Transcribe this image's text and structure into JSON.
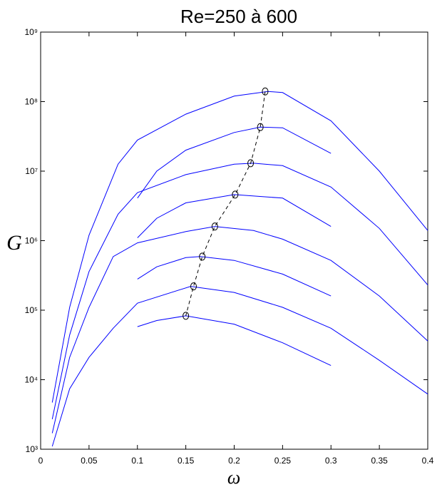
{
  "chart_data": {
    "type": "line",
    "title": "Re=250 à 600",
    "x_label": "ω",
    "y_label": "G",
    "log_y": true,
    "xlim": [
      0,
      0.4
    ],
    "ylim": [
      1000,
      1000000000
    ],
    "xticks": [
      0,
      0.05,
      0.1,
      0.15,
      0.2,
      0.25,
      0.3,
      0.35,
      0.4
    ],
    "yticks": [
      {
        "value": 1000,
        "label": "10³"
      },
      {
        "value": 10000,
        "label": "10⁴"
      },
      {
        "value": 100000,
        "label": "10⁵"
      },
      {
        "value": 1000000,
        "label": "10⁶"
      },
      {
        "value": 10000000,
        "label": "10⁷"
      },
      {
        "value": 100000000,
        "label": "10⁸"
      },
      {
        "value": 1000000000,
        "label": "10⁹"
      }
    ],
    "series": [
      {
        "color": "#0000ff",
        "x": [
          0.012,
          0.03,
          0.05,
          0.08,
          0.1,
          0.15,
          0.2,
          0.235,
          0.25,
          0.3,
          0.35,
          0.4
        ],
        "values": [
          4700,
          110000,
          1200000,
          12600000,
          28000000,
          66000000,
          120000000,
          140000000,
          135000000,
          53000000,
          10000000,
          1400000
        ]
      },
      {
        "color": "#0000ff",
        "x": [
          0.012,
          0.03,
          0.05,
          0.08,
          0.1,
          0.15,
          0.2,
          0.22,
          0.25,
          0.3,
          0.35,
          0.4
        ],
        "values": [
          2700,
          44000,
          360000,
          2400000,
          4900000,
          8900000,
          12600000,
          13000000,
          12000000,
          5900000,
          1500000,
          230000
        ]
      },
      {
        "color": "#0000ff",
        "x": [
          0.012,
          0.03,
          0.05,
          0.075,
          0.1,
          0.15,
          0.18,
          0.22,
          0.25,
          0.3,
          0.35,
          0.4
        ],
        "values": [
          1700,
          21000,
          110000,
          590000,
          930000,
          1350000,
          1600000,
          1400000,
          1050000,
          520000,
          160000,
          36000
        ]
      },
      {
        "color": "#0000ff",
        "x": [
          0.012,
          0.03,
          0.05,
          0.075,
          0.1,
          0.155,
          0.2,
          0.25,
          0.3,
          0.35,
          0.4
        ],
        "values": [
          1100,
          7400,
          21000,
          55000,
          126000,
          220000,
          180000,
          110000,
          55000,
          19000,
          6200
        ]
      },
      {
        "color": "#0000ff",
        "x": [
          0.1,
          0.12,
          0.15,
          0.2,
          0.227,
          0.25,
          0.3
        ],
        "values": [
          4100000,
          10000000,
          20000000,
          36000000,
          43000000,
          42000000,
          18000000
        ]
      },
      {
        "color": "#0000ff",
        "x": [
          0.1,
          0.12,
          0.15,
          0.2,
          0.25,
          0.3
        ],
        "values": [
          1100000,
          2100000,
          3500000,
          4600000,
          4100000,
          1600000
        ]
      },
      {
        "color": "#0000ff",
        "x": [
          0.1,
          0.12,
          0.15,
          0.165,
          0.2,
          0.25,
          0.3
        ],
        "values": [
          280000,
          420000,
          570000,
          590000,
          520000,
          330000,
          160000
        ]
      },
      {
        "color": "#0000ff",
        "x": [
          0.1,
          0.12,
          0.15,
          0.2,
          0.25,
          0.3
        ],
        "values": [
          58000,
          71000,
          83000,
          63000,
          34000,
          16000
        ]
      },
      {
        "color": "#000000",
        "dashed": true,
        "marker": "circle",
        "x": [
          0.232,
          0.227,
          0.217,
          0.201,
          0.18,
          0.167,
          0.158,
          0.15
        ],
        "values": [
          140000000,
          43000000,
          13000000,
          4600000,
          1600000,
          590000,
          220000,
          83000
        ]
      }
    ]
  }
}
